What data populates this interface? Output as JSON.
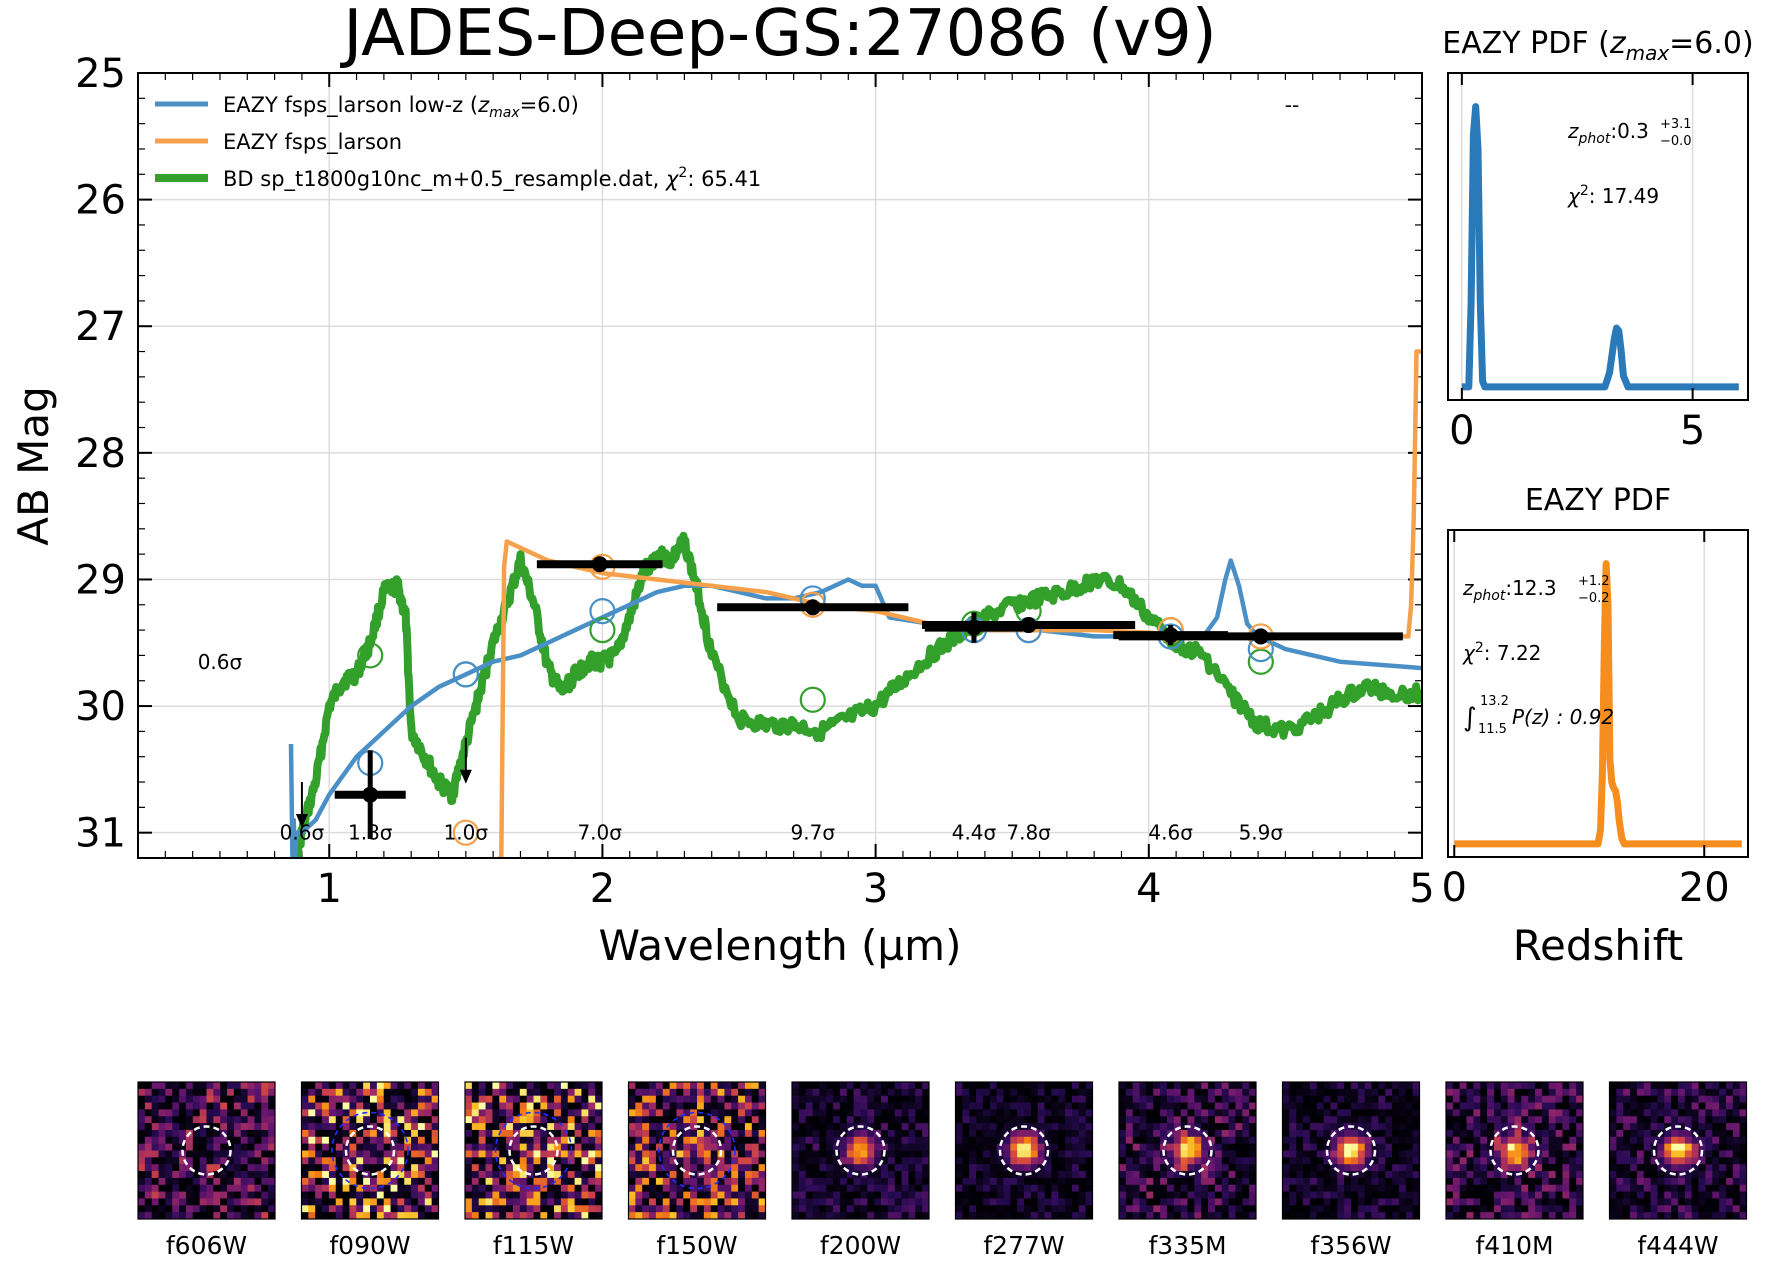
{
  "figure_title": "JADES-Deep-GS:27086 (v9)",
  "chart_data": [
    {
      "type": "line",
      "panel": "sed",
      "xlabel": "Wavelength (µm)",
      "ylabel": "AB Mag",
      "xlim": [
        0.3,
        5.0
      ],
      "ylim": [
        31.2,
        25.0
      ],
      "y_inverted": true,
      "xticks": [
        "1",
        "2",
        "3",
        "4",
        "5"
      ],
      "yticks": [
        "25",
        "26",
        "27",
        "28",
        "29",
        "30",
        "31"
      ],
      "grid": true,
      "legend_placement": "top-left",
      "corner_text": "--",
      "colors": {
        "lowz": "#4a90c7",
        "highz": "#f5a04a",
        "bd": "#33a02c",
        "data": "#000000"
      },
      "legend": [
        {
          "series": "lowz",
          "label_main": "EAZY fsps_larson low-z (",
          "label_sym": "z",
          "label_sub": "max",
          "label_tail": "=6.0)"
        },
        {
          "series": "highz",
          "label_main": "EAZY fsps_larson"
        },
        {
          "series": "bd",
          "label_main": "BD sp_t1800g10nc_m+0.5_resample.dat, ",
          "label_sym": "χ",
          "label_sup": "2",
          "label_tail": ": 65.41"
        }
      ],
      "series": {
        "lowz": {
          "x": [
            0.86,
            0.865,
            0.87,
            0.875,
            0.88,
            0.9,
            0.95,
            1.0,
            1.1,
            1.2,
            1.3,
            1.4,
            1.5,
            1.6,
            1.7,
            1.8,
            1.9,
            2.0,
            2.1,
            2.2,
            2.3,
            2.4,
            2.5,
            2.6,
            2.7,
            2.8,
            2.85,
            2.9,
            2.95,
            3.0,
            3.05,
            3.2,
            3.4,
            3.6,
            3.8,
            4.0,
            4.2,
            4.25,
            4.28,
            4.3,
            4.33,
            4.36,
            4.4,
            4.5,
            4.7,
            5.0
          ],
          "y": [
            30.3,
            31.2,
            30.9,
            31.2,
            31.0,
            31.0,
            30.9,
            30.7,
            30.4,
            30.2,
            30.0,
            29.85,
            29.75,
            29.65,
            29.6,
            29.5,
            29.4,
            29.3,
            29.2,
            29.1,
            29.05,
            29.05,
            29.1,
            29.15,
            29.15,
            29.1,
            29.05,
            29.0,
            29.05,
            29.05,
            29.3,
            29.35,
            29.4,
            29.4,
            29.45,
            29.45,
            29.45,
            29.3,
            29.0,
            28.85,
            29.05,
            29.35,
            29.45,
            29.55,
            29.65,
            29.7
          ]
        },
        "highz": {
          "x": [
            1.62,
            1.63,
            1.64,
            1.65,
            1.7,
            1.8,
            2.0,
            2.2,
            2.4,
            2.6,
            2.8,
            3.0,
            3.2,
            3.4,
            3.6,
            3.8,
            4.0,
            4.2,
            4.4,
            4.6,
            4.8,
            4.95,
            4.96,
            4.97,
            4.98,
            5.0
          ],
          "y": [
            31.2,
            31.2,
            28.9,
            28.7,
            28.75,
            28.85,
            28.95,
            29.0,
            29.05,
            29.1,
            29.2,
            29.25,
            29.35,
            29.4,
            29.4,
            29.4,
            29.42,
            29.45,
            29.45,
            29.45,
            29.45,
            29.45,
            29.2,
            28.5,
            27.2,
            27.2
          ]
        },
        "bd": {
          "x": [
            0.88,
            0.9,
            0.95,
            1.0,
            1.05,
            1.1,
            1.15,
            1.2,
            1.25,
            1.28,
            1.3,
            1.35,
            1.4,
            1.45,
            1.5,
            1.55,
            1.6,
            1.65,
            1.7,
            1.75,
            1.8,
            1.85,
            1.9,
            1.95,
            2.0,
            2.05,
            2.1,
            2.15,
            2.2,
            2.25,
            2.3,
            2.35,
            2.4,
            2.5,
            2.6,
            2.7,
            2.8,
            2.9,
            3.0,
            3.1,
            3.2,
            3.3,
            3.4,
            3.5,
            3.6,
            3.7,
            3.8,
            3.9,
            4.0,
            4.1,
            4.2,
            4.3,
            4.4,
            4.5,
            4.6,
            4.7,
            4.8,
            4.9,
            5.0
          ],
          "y": [
            31.2,
            31.0,
            30.6,
            30.0,
            29.8,
            29.75,
            29.5,
            29.1,
            29.05,
            29.3,
            30.2,
            30.4,
            30.6,
            30.7,
            30.3,
            29.9,
            29.5,
            29.2,
            28.85,
            29.2,
            29.7,
            29.9,
            29.75,
            29.65,
            29.65,
            29.6,
            29.3,
            28.95,
            28.8,
            28.85,
            28.7,
            29.1,
            29.6,
            30.1,
            30.15,
            30.15,
            30.2,
            30.1,
            30.0,
            29.8,
            29.6,
            29.45,
            29.3,
            29.2,
            29.15,
            29.1,
            29.0,
            29.05,
            29.3,
            29.5,
            29.6,
            29.9,
            30.15,
            30.2,
            30.1,
            29.95,
            29.85,
            29.9,
            29.9
          ]
        }
      },
      "model_points": {
        "lowz": {
          "x": [
            1.15,
            1.5,
            2.0,
            2.77,
            3.36,
            3.56,
            4.08,
            4.41
          ],
          "y": [
            30.45,
            29.75,
            29.25,
            29.15,
            29.4,
            29.4,
            29.45,
            29.55
          ]
        },
        "highz": {
          "x": [
            1.5,
            2.0,
            2.77,
            3.36,
            3.56,
            4.08,
            4.41
          ],
          "y": [
            31.0,
            28.9,
            29.2,
            29.4,
            29.4,
            29.4,
            29.45
          ]
        },
        "bd": {
          "x": [
            1.15,
            1.5,
            2.0,
            2.77,
            3.36,
            3.56,
            4.08,
            4.41
          ],
          "y": [
            29.6,
            29.75,
            29.4,
            29.95,
            29.35,
            29.25,
            29.4,
            29.65
          ]
        }
      },
      "detections": [
        {
          "x": 1.15,
          "y": 30.7,
          "xerr": 0.13,
          "yerr": 0.35
        },
        {
          "x": 1.99,
          "y": 28.88,
          "xerr": 0.23,
          "yerr": 0.06
        },
        {
          "x": 2.77,
          "y": 29.22,
          "xerr": 0.35,
          "yerr": 0.05
        },
        {
          "x": 3.36,
          "y": 29.38,
          "xerr": 0.18,
          "yerr": 0.12
        },
        {
          "x": 3.56,
          "y": 29.36,
          "xerr": 0.39,
          "yerr": 0.06
        },
        {
          "x": 4.08,
          "y": 29.44,
          "xerr": 0.21,
          "yerr": 0.08
        },
        {
          "x": 4.41,
          "y": 29.45,
          "xerr": 0.52,
          "yerr": 0.06
        }
      ],
      "upper_limits": [
        {
          "x": 0.9,
          "y": 30.6
        },
        {
          "x": 1.5,
          "y": 30.25
        }
      ],
      "annotations": [
        {
          "x": 0.6,
          "y": 29.65,
          "text": "0.6σ"
        },
        {
          "x": 0.9,
          "y": 31.0,
          "text": "0.6σ"
        },
        {
          "x": 1.15,
          "y": 31.0,
          "text": "1.8σ"
        },
        {
          "x": 1.5,
          "y": 31.0,
          "text": "1.0σ"
        },
        {
          "x": 1.99,
          "y": 31.0,
          "text": "7.0σ"
        },
        {
          "x": 2.77,
          "y": 31.0,
          "text": "9.7σ"
        },
        {
          "x": 3.36,
          "y": 31.0,
          "text": "4.4σ"
        },
        {
          "x": 3.56,
          "y": 31.0,
          "text": "7.8σ"
        },
        {
          "x": 4.08,
          "y": 31.0,
          "text": "4.6σ"
        },
        {
          "x": 4.41,
          "y": 31.0,
          "text": "5.9σ"
        }
      ]
    },
    {
      "type": "line",
      "panel": "pdf-lowz",
      "title_main": "EAZY PDF (",
      "title_sym": "z",
      "title_sub": "max",
      "title_tail": "=6.0)",
      "xlim": [
        -0.3,
        6.2
      ],
      "ylim": [
        0,
        1.05
      ],
      "xticks": [
        "0",
        "5"
      ],
      "grid": true,
      "color": "#2a7ab9",
      "x": [
        0.0,
        0.15,
        0.2,
        0.25,
        0.3,
        0.35,
        0.4,
        0.45,
        0.5,
        3.1,
        3.2,
        3.3,
        3.35,
        3.4,
        3.45,
        3.5,
        3.6,
        6.0
      ],
      "y": [
        0.0,
        0.0,
        0.3,
        0.9,
        1.0,
        0.85,
        0.3,
        0.02,
        0.0,
        0.0,
        0.05,
        0.17,
        0.21,
        0.2,
        0.13,
        0.04,
        0.0,
        0.0
      ],
      "zphot_label": "z",
      "zphot_sub": "phot",
      "zphot_value": ":0.3",
      "zphot_up": "+3.1",
      "zphot_lo": "−0.0",
      "chi2_label": "χ",
      "chi2_sup": "2",
      "chi2_value": ": 17.49"
    },
    {
      "type": "line",
      "panel": "pdf-highz",
      "title": "EAZY PDF",
      "xlabel": "Redshift",
      "xlim": [
        -0.5,
        23.5
      ],
      "ylim": [
        0,
        1.05
      ],
      "xticks": [
        "0",
        "20"
      ],
      "grid": true,
      "color": "#f58d1f",
      "x": [
        0.0,
        11.5,
        11.7,
        11.85,
        12.0,
        12.15,
        12.3,
        12.45,
        12.6,
        12.75,
        12.9,
        13.05,
        13.2,
        13.4,
        13.6,
        14.0,
        23.0
      ],
      "y": [
        0.0,
        0.0,
        0.05,
        0.25,
        0.7,
        1.0,
        0.85,
        0.3,
        0.22,
        0.2,
        0.19,
        0.15,
        0.08,
        0.02,
        0.0,
        0.0,
        0.0
      ],
      "zphot_label": "z",
      "zphot_sub": "phot",
      "zphot_value": ":12.3",
      "zphot_up": "+1.2",
      "zphot_lo": "−0.2",
      "chi2_label": "χ",
      "chi2_sup": "2",
      "chi2_value": ": 7.22",
      "int_sym": "∫",
      "int_up": "13.2",
      "int_lo": "11.5",
      "int_value": "P(z) : 0.92"
    }
  ],
  "stamps": [
    {
      "label": "f606W",
      "bright": 0.0,
      "noise": 0.35,
      "seed": 3,
      "blue_ring": false
    },
    {
      "label": "f090W",
      "bright": 0.1,
      "noise": 0.7,
      "seed": 7,
      "blue_ring": true
    },
    {
      "label": "f115W",
      "bright": 0.15,
      "noise": 0.65,
      "seed": 11,
      "blue_ring": true
    },
    {
      "label": "f150W",
      "bright": 0.2,
      "noise": 0.55,
      "seed": 19,
      "blue_ring": true
    },
    {
      "label": "f200W",
      "bright": 0.8,
      "noise": 0.15,
      "seed": 23,
      "blue_ring": false
    },
    {
      "label": "f277W",
      "bright": 1.0,
      "noise": 0.12,
      "seed": 29,
      "blue_ring": false
    },
    {
      "label": "f335M",
      "bright": 0.9,
      "noise": 0.25,
      "seed": 31,
      "blue_ring": false
    },
    {
      "label": "f356W",
      "bright": 1.0,
      "noise": 0.13,
      "seed": 37,
      "blue_ring": false
    },
    {
      "label": "f410M",
      "bright": 0.85,
      "noise": 0.25,
      "seed": 41,
      "blue_ring": false
    },
    {
      "label": "f444W",
      "bright": 0.95,
      "noise": 0.2,
      "seed": 43,
      "blue_ring": false
    }
  ]
}
